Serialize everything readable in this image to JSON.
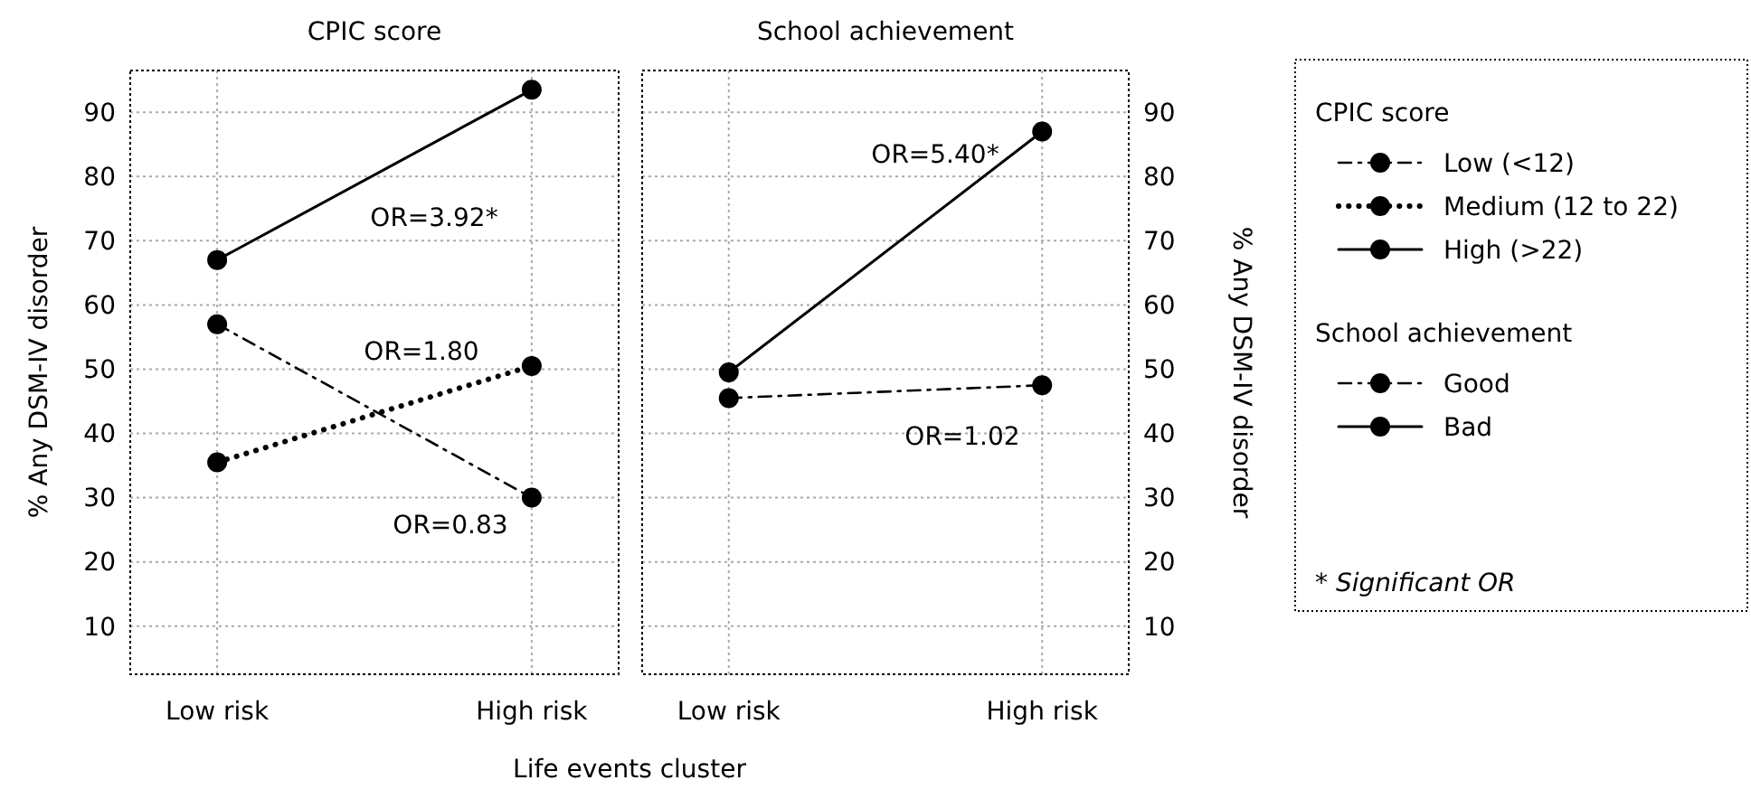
{
  "chart_data": [
    {
      "type": "line",
      "title": "CPIC score",
      "xlabel": "Life events cluster",
      "ylabel": "% Any  DSM-IV disorder",
      "legend_title": "CPIC score",
      "categories": [
        "Low risk",
        "High risk"
      ],
      "ylim": [
        2.5,
        96.5
      ],
      "yticks": [
        10,
        20,
        30,
        40,
        50,
        60,
        70,
        80,
        90
      ],
      "grid": true,
      "legend": "right",
      "marker": "circle",
      "series": [
        {
          "name": "Low (<12)",
          "color": "#000000",
          "line_style": "dashed",
          "values": [
            57,
            30
          ]
        },
        {
          "name": "Medium (12 to 22)",
          "color": "#000000",
          "line_style": "dotted",
          "values": [
            35.5,
            50.5
          ]
        },
        {
          "name": "High (>22)",
          "color": "#000000",
          "line_style": "solid",
          "values": [
            67,
            93.5
          ]
        }
      ],
      "annotations": [
        "OR=3.92*",
        "OR=1.80",
        "OR=0.83"
      ]
    },
    {
      "type": "line",
      "title": "School achievement",
      "ylabel": "% Any  DSM-IV disorder",
      "legend_title": "School achievement",
      "categories": [
        "Low risk",
        "High risk"
      ],
      "ylim": [
        2.5,
        96.5
      ],
      "yticks": [
        10,
        20,
        30,
        40,
        50,
        60,
        70,
        80,
        90
      ],
      "grid": true,
      "legend": "right",
      "marker": "circle",
      "series": [
        {
          "name": "Good",
          "color": "#000000",
          "line_style": "dashed",
          "values": [
            45.5,
            47.5
          ]
        },
        {
          "name": "Bad",
          "color": "#000000",
          "line_style": "solid",
          "values": [
            49.5,
            87
          ]
        }
      ],
      "annotations": [
        "OR=5.40*",
        "OR=1.02",
        "* Significant OR"
      ]
    }
  ]
}
